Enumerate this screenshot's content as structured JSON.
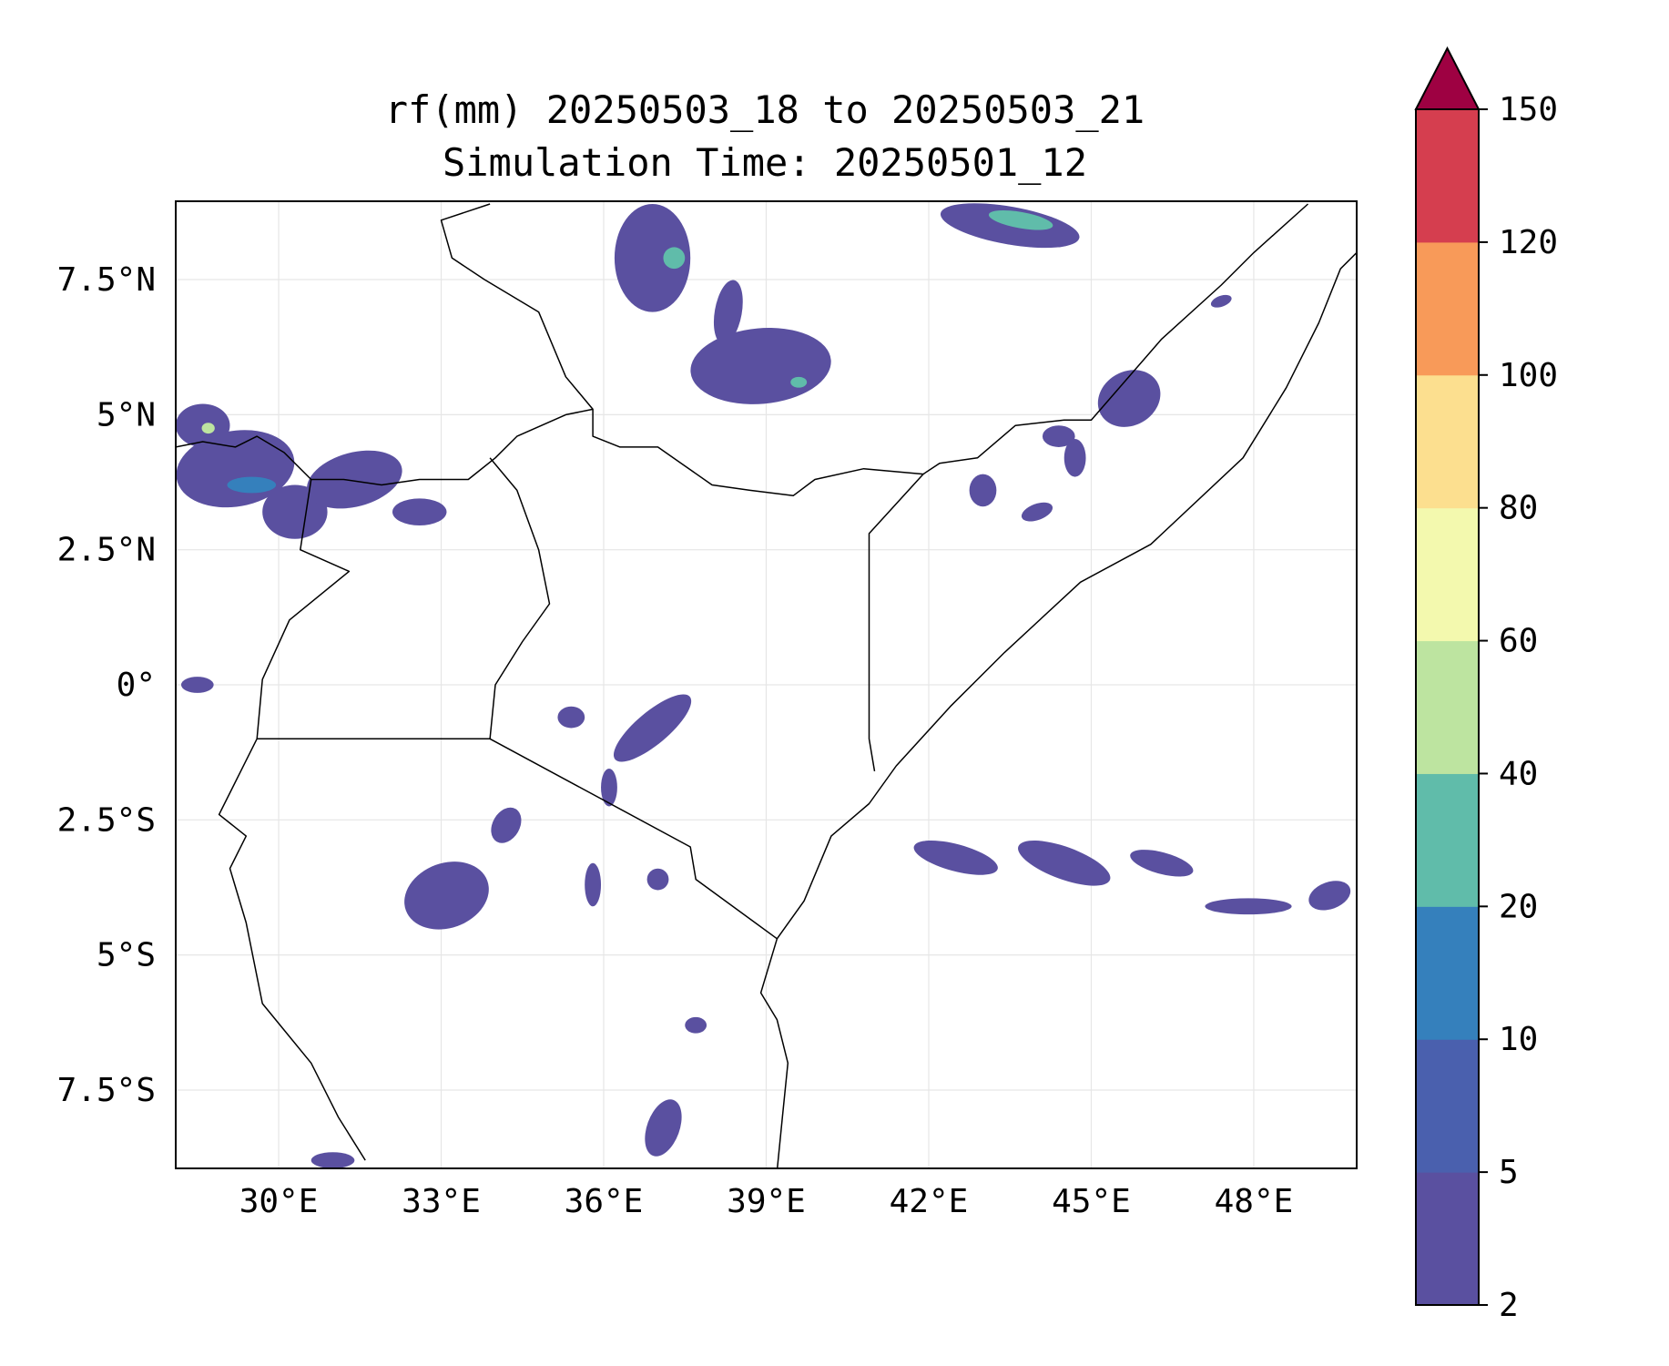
{
  "title": {
    "line1": "rf(mm) 20250503_18 to 20250503_21",
    "line2": "Simulation Time: 20250501_12"
  },
  "map": {
    "lon_range": [
      28.1,
      49.9
    ],
    "lat_range": [
      -8.95,
      8.95
    ],
    "lon_ticks": [
      {
        "value": 30,
        "label": "30°E"
      },
      {
        "value": 33,
        "label": "33°E"
      },
      {
        "value": 36,
        "label": "36°E"
      },
      {
        "value": 39,
        "label": "39°E"
      },
      {
        "value": 42,
        "label": "42°E"
      },
      {
        "value": 45,
        "label": "45°E"
      },
      {
        "value": 48,
        "label": "48°E"
      }
    ],
    "lat_ticks": [
      {
        "value": 7.5,
        "label": "7.5°N"
      },
      {
        "value": 5,
        "label": "5°N"
      },
      {
        "value": 2.5,
        "label": "2.5°N"
      },
      {
        "value": 0,
        "label": "0°"
      },
      {
        "value": -2.5,
        "label": "2.5°S"
      },
      {
        "value": -5,
        "label": "5°S"
      },
      {
        "value": -7.5,
        "label": "7.5°S"
      }
    ],
    "gridlines": true,
    "borders": [
      [
        [
          28.1,
          4.4
        ],
        [
          28.6,
          4.5
        ],
        [
          29.2,
          4.4
        ],
        [
          29.6,
          4.6
        ],
        [
          30.1,
          4.3
        ],
        [
          30.6,
          3.8
        ],
        [
          31.2,
          3.8
        ],
        [
          31.9,
          3.7
        ],
        [
          32.6,
          3.8
        ],
        [
          33.5,
          3.8
        ],
        [
          34.0,
          4.2
        ],
        [
          34.4,
          4.6
        ],
        [
          35.3,
          5.0
        ],
        [
          35.8,
          5.1
        ],
        [
          35.8,
          4.6
        ],
        [
          36.3,
          4.4
        ],
        [
          37.0,
          4.4
        ],
        [
          38.0,
          3.7
        ],
        [
          38.7,
          3.6
        ],
        [
          39.5,
          3.5
        ],
        [
          39.9,
          3.8
        ],
        [
          40.8,
          4.0
        ],
        [
          41.9,
          3.9
        ],
        [
          42.2,
          4.1
        ],
        [
          42.9,
          4.2
        ],
        [
          43.6,
          4.8
        ],
        [
          44.5,
          4.9
        ],
        [
          45.0,
          4.9
        ],
        [
          46.3,
          6.4
        ],
        [
          47.4,
          7.4
        ],
        [
          48.0,
          8.0
        ],
        [
          49.0,
          8.9
        ]
      ],
      [
        [
          33.9,
          4.2
        ],
        [
          34.4,
          3.6
        ],
        [
          34.8,
          2.5
        ],
        [
          35.0,
          1.5
        ],
        [
          34.5,
          0.8
        ],
        [
          34.0,
          0.0
        ],
        [
          33.9,
          -1.0
        ]
      ],
      [
        [
          29.6,
          -1.0
        ],
        [
          31.0,
          -1.0
        ],
        [
          32.5,
          -1.0
        ],
        [
          33.9,
          -1.0
        ],
        [
          37.6,
          -3.0
        ],
        [
          37.7,
          -3.6
        ],
        [
          39.2,
          -4.7
        ]
      ],
      [
        [
          30.6,
          3.8
        ],
        [
          30.4,
          2.5
        ],
        [
          31.3,
          2.1
        ],
        [
          30.2,
          1.2
        ],
        [
          29.7,
          0.1
        ],
        [
          29.6,
          -1.0
        ],
        [
          29.4,
          -1.4
        ],
        [
          28.9,
          -2.4
        ],
        [
          29.4,
          -2.8
        ],
        [
          29.1,
          -3.4
        ],
        [
          29.4,
          -4.4
        ],
        [
          29.7,
          -5.9
        ],
        [
          30.6,
          -7.0
        ],
        [
          31.1,
          -8.0
        ],
        [
          31.6,
          -8.8
        ]
      ],
      [
        [
          41.0,
          -1.6
        ],
        [
          40.9,
          -1.0
        ],
        [
          40.9,
          2.8
        ],
        [
          41.9,
          3.9
        ]
      ],
      [
        [
          33.9,
          8.9
        ],
        [
          33.0,
          8.6
        ],
        [
          33.2,
          7.9
        ],
        [
          33.8,
          7.5
        ],
        [
          34.8,
          6.9
        ],
        [
          35.3,
          5.7
        ],
        [
          35.8,
          5.1
        ]
      ]
    ],
    "coastline": [
      [
        39.2,
        -9.0
      ],
      [
        39.3,
        -8.0
      ],
      [
        39.4,
        -7.0
      ],
      [
        39.2,
        -6.2
      ],
      [
        38.9,
        -5.7
      ],
      [
        39.2,
        -4.7
      ],
      [
        39.7,
        -4.0
      ],
      [
        40.2,
        -2.8
      ],
      [
        40.9,
        -2.2
      ],
      [
        41.4,
        -1.5
      ],
      [
        42.4,
        -0.4
      ],
      [
        43.4,
        0.6
      ],
      [
        44.8,
        1.9
      ],
      [
        46.1,
        2.6
      ],
      [
        47.8,
        4.2
      ],
      [
        48.6,
        5.5
      ],
      [
        49.2,
        6.7
      ],
      [
        49.6,
        7.7
      ],
      [
        49.9,
        8.0
      ]
    ],
    "rain_color_scale": [
      {
        "level": 2,
        "color": "#5a50a0"
      },
      {
        "level": 5,
        "color": "#4a60ae"
      },
      {
        "level": 10,
        "color": "#3580bc"
      },
      {
        "level": 20,
        "color": "#60bcaa"
      },
      {
        "level": 40,
        "color": "#bde4a0"
      },
      {
        "level": 60,
        "color": "#f3f9ae"
      },
      {
        "level": 80,
        "color": "#fcdf8f"
      },
      {
        "level": 100,
        "color": "#f89a59"
      },
      {
        "level": 120,
        "color": "#d53e4f"
      },
      {
        "level": 150,
        "color": "#9e0142"
      }
    ],
    "rain_cells": [
      {
        "lon": 29.2,
        "lat": 4.0,
        "rx": 1.1,
        "ry": 0.7,
        "rot": -10,
        "mm": 3
      },
      {
        "lon": 30.3,
        "lat": 3.2,
        "rx": 0.6,
        "ry": 0.5,
        "rot": 0,
        "mm": 3
      },
      {
        "lon": 31.4,
        "lat": 3.8,
        "rx": 0.9,
        "ry": 0.5,
        "rot": -15,
        "mm": 3
      },
      {
        "lon": 32.6,
        "lat": 3.2,
        "rx": 0.5,
        "ry": 0.25,
        "rot": 0,
        "mm": 3
      },
      {
        "lon": 28.6,
        "lat": 4.8,
        "rx": 0.5,
        "ry": 0.4,
        "rot": 0,
        "mm": 3
      },
      {
        "lon": 29.5,
        "lat": 3.7,
        "rx": 0.45,
        "ry": 0.15,
        "rot": 0,
        "mm": 12
      },
      {
        "lon": 28.7,
        "lat": 4.75,
        "rx": 0.12,
        "ry": 0.1,
        "rot": 0,
        "mm": 45
      },
      {
        "lon": 36.9,
        "lat": 7.9,
        "rx": 0.7,
        "ry": 1.0,
        "rot": 0,
        "mm": 3
      },
      {
        "lon": 37.3,
        "lat": 7.9,
        "rx": 0.2,
        "ry": 0.2,
        "rot": 0,
        "mm": 25
      },
      {
        "lon": 38.9,
        "lat": 5.9,
        "rx": 1.3,
        "ry": 0.7,
        "rot": -5,
        "mm": 3
      },
      {
        "lon": 39.6,
        "lat": 5.6,
        "rx": 0.15,
        "ry": 0.1,
        "rot": 0,
        "mm": 25
      },
      {
        "lon": 38.3,
        "lat": 6.9,
        "rx": 0.25,
        "ry": 0.6,
        "rot": 10,
        "mm": 3
      },
      {
        "lon": 43.5,
        "lat": 8.5,
        "rx": 1.3,
        "ry": 0.35,
        "rot": 10,
        "mm": 3
      },
      {
        "lon": 43.7,
        "lat": 8.6,
        "rx": 0.6,
        "ry": 0.15,
        "rot": 10,
        "mm": 25
      },
      {
        "lon": 45.7,
        "lat": 5.3,
        "rx": 0.6,
        "ry": 0.5,
        "rot": -30,
        "mm": 3
      },
      {
        "lon": 44.4,
        "lat": 4.6,
        "rx": 0.3,
        "ry": 0.2,
        "rot": 0,
        "mm": 3
      },
      {
        "lon": 44.7,
        "lat": 4.2,
        "rx": 0.2,
        "ry": 0.35,
        "rot": 0,
        "mm": 3
      },
      {
        "lon": 43.0,
        "lat": 3.6,
        "rx": 0.25,
        "ry": 0.3,
        "rot": 0,
        "mm": 3
      },
      {
        "lon": 44.0,
        "lat": 3.2,
        "rx": 0.3,
        "ry": 0.15,
        "rot": -20,
        "mm": 3
      },
      {
        "lon": 36.9,
        "lat": -0.8,
        "rx": 0.9,
        "ry": 0.3,
        "rot": -40,
        "mm": 3
      },
      {
        "lon": 35.4,
        "lat": -0.6,
        "rx": 0.25,
        "ry": 0.2,
        "rot": 0,
        "mm": 3
      },
      {
        "lon": 36.1,
        "lat": -1.9,
        "rx": 0.15,
        "ry": 0.35,
        "rot": 0,
        "mm": 3
      },
      {
        "lon": 33.1,
        "lat": -3.9,
        "rx": 0.8,
        "ry": 0.6,
        "rot": -20,
        "mm": 3
      },
      {
        "lon": 34.2,
        "lat": -2.6,
        "rx": 0.25,
        "ry": 0.35,
        "rot": 30,
        "mm": 3
      },
      {
        "lon": 35.8,
        "lat": -3.7,
        "rx": 0.15,
        "ry": 0.4,
        "rot": 0,
        "mm": 3
      },
      {
        "lon": 37.0,
        "lat": -3.6,
        "rx": 0.2,
        "ry": 0.2,
        "rot": 0,
        "mm": 3
      },
      {
        "lon": 37.1,
        "lat": -8.2,
        "rx": 0.3,
        "ry": 0.55,
        "rot": 20,
        "mm": 3
      },
      {
        "lon": 37.7,
        "lat": -6.3,
        "rx": 0.2,
        "ry": 0.15,
        "rot": 0,
        "mm": 3
      },
      {
        "lon": 31.0,
        "lat": -8.8,
        "rx": 0.4,
        "ry": 0.15,
        "rot": 0,
        "mm": 3
      },
      {
        "lon": 28.5,
        "lat": 0.0,
        "rx": 0.3,
        "ry": 0.15,
        "rot": 0,
        "mm": 3
      },
      {
        "lon": 42.5,
        "lat": -3.2,
        "rx": 0.8,
        "ry": 0.25,
        "rot": 15,
        "mm": 3
      },
      {
        "lon": 44.5,
        "lat": -3.3,
        "rx": 0.9,
        "ry": 0.3,
        "rot": 20,
        "mm": 3
      },
      {
        "lon": 46.3,
        "lat": -3.3,
        "rx": 0.6,
        "ry": 0.2,
        "rot": 15,
        "mm": 3
      },
      {
        "lon": 47.9,
        "lat": -4.1,
        "rx": 0.8,
        "ry": 0.15,
        "rot": 0,
        "mm": 3
      },
      {
        "lon": 49.4,
        "lat": -3.9,
        "rx": 0.4,
        "ry": 0.25,
        "rot": -20,
        "mm": 3
      },
      {
        "lon": 47.4,
        "lat": 7.1,
        "rx": 0.2,
        "ry": 0.1,
        "rot": -20,
        "mm": 3
      }
    ]
  },
  "colorbar": {
    "levels": [
      2,
      5,
      10,
      20,
      40,
      60,
      80,
      100,
      120,
      150
    ],
    "labels": [
      "2",
      "5",
      "10",
      "20",
      "40",
      "60",
      "80",
      "100",
      "120",
      "150"
    ],
    "extend": "max"
  }
}
